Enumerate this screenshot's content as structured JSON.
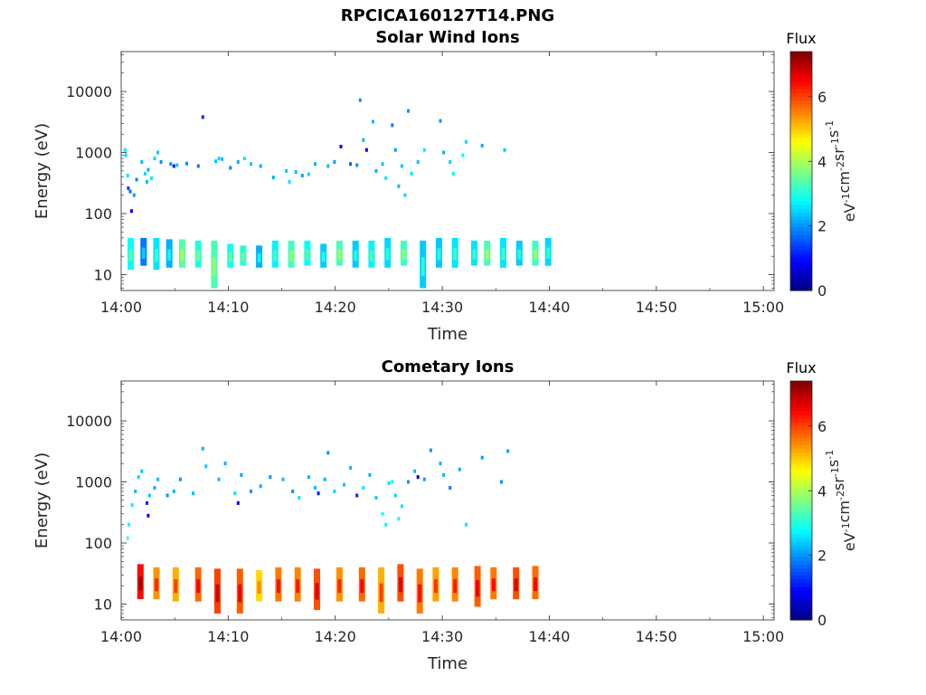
{
  "figure": {
    "title": "RPCICA160127T14.PNG"
  },
  "colorbar": {
    "label": "Flux",
    "unit_parts": [
      "eV",
      "-1",
      "cm",
      "-2",
      "sr",
      "-1",
      "s",
      "-1"
    ],
    "ticks": [
      "0",
      "2",
      "4",
      "6"
    ],
    "range": [
      0,
      7.4
    ],
    "colormap": "jet"
  },
  "chart_data": [
    {
      "type": "heatmap",
      "title": "Solar Wind Ions",
      "xlabel": "Time",
      "ylabel": "Energy (eV)",
      "y_scale": "log",
      "ylim": [
        5.5,
        45000
      ],
      "xlim": [
        "14:00",
        "15:01"
      ],
      "x_ticks": [
        "14:00",
        "14:10",
        "14:20",
        "14:30",
        "14:40",
        "14:50",
        "15:00"
      ],
      "y_ticks": [
        "10",
        "100",
        "1000",
        "10000"
      ],
      "low_band_bursts": [
        {
          "t": 14.01,
          "e": [
            12,
            40
          ],
          "flux": 2.8
        },
        {
          "t": 14.03,
          "e": [
            14,
            40
          ],
          "flux": 1.8
        },
        {
          "t": 14.05,
          "e": [
            12,
            40
          ],
          "flux": 2.6
        },
        {
          "t": 14.07,
          "e": [
            13,
            38
          ],
          "flux": 2.2
        },
        {
          "t": 14.09,
          "e": [
            13,
            38
          ],
          "flux": 3.4
        },
        {
          "t": 14.115,
          "e": [
            13,
            36
          ],
          "flux": 3.0
        },
        {
          "t": 14.14,
          "e": [
            6,
            36
          ],
          "flux": 3.3
        },
        {
          "t": 14.165,
          "e": [
            13,
            32
          ],
          "flux": 2.9
        },
        {
          "t": 14.185,
          "e": [
            14,
            30
          ],
          "flux": 3.0
        },
        {
          "t": 14.21,
          "e": [
            13,
            30
          ],
          "flux": 2.2
        },
        {
          "t": 14.235,
          "e": [
            13,
            36
          ],
          "flux": 2.7
        },
        {
          "t": 14.26,
          "e": [
            13,
            36
          ],
          "flux": 3.2
        },
        {
          "t": 14.285,
          "e": [
            14,
            36
          ],
          "flux": 2.8
        },
        {
          "t": 14.31,
          "e": [
            13,
            32
          ],
          "flux": 2.4
        },
        {
          "t": 14.335,
          "e": [
            14,
            36
          ],
          "flux": 3.3
        },
        {
          "t": 14.36,
          "e": [
            13,
            36
          ],
          "flux": 2.4
        },
        {
          "t": 14.385,
          "e": [
            13,
            36
          ],
          "flux": 2.7
        },
        {
          "t": 14.41,
          "e": [
            13,
            40
          ],
          "flux": 2.5
        },
        {
          "t": 14.435,
          "e": [
            14,
            36
          ],
          "flux": 3.2
        },
        {
          "t": 14.465,
          "e": [
            6,
            36
          ],
          "flux": 2.4
        },
        {
          "t": 14.49,
          "e": [
            13,
            40
          ],
          "flux": 2.4
        },
        {
          "t": 14.515,
          "e": [
            13,
            40
          ],
          "flux": 2.6
        },
        {
          "t": 14.545,
          "e": [
            14,
            36
          ],
          "flux": 2.6
        },
        {
          "t": 14.565,
          "e": [
            14,
            36
          ],
          "flux": 3.3
        },
        {
          "t": 14.59,
          "e": [
            13,
            40
          ],
          "flux": 2.6
        },
        {
          "t": 14.615,
          "e": [
            14,
            36
          ],
          "flux": 2.4
        },
        {
          "t": 14.64,
          "e": [
            14,
            36
          ],
          "flux": 3.2
        },
        {
          "t": 14.66,
          "e": [
            14,
            40
          ],
          "flux": 2.5
        }
      ],
      "high_band_points": [
        {
          "t": 14.004,
          "e": 1100,
          "flux": 2.6
        },
        {
          "t": 14.005,
          "e": 900,
          "flux": 2.5
        },
        {
          "t": 14.008,
          "e": 420,
          "flux": 2.6
        },
        {
          "t": 14.009,
          "e": 260,
          "flux": 1.4
        },
        {
          "t": 14.012,
          "e": 230,
          "flux": 1.7
        },
        {
          "t": 14.014,
          "e": 110,
          "flux": 0.9
        },
        {
          "t": 14.018,
          "e": 200,
          "flux": 2.1
        },
        {
          "t": 14.022,
          "e": 360,
          "flux": 1.9
        },
        {
          "t": 14.03,
          "e": 700,
          "flux": 2.3
        },
        {
          "t": 14.035,
          "e": 450,
          "flux": 2.5
        },
        {
          "t": 14.038,
          "e": 330,
          "flux": 2.3
        },
        {
          "t": 14.04,
          "e": 520,
          "flux": 2.2
        },
        {
          "t": 14.045,
          "e": 380,
          "flux": 2.6
        },
        {
          "t": 14.05,
          "e": 800,
          "flux": 2.5
        },
        {
          "t": 14.055,
          "e": 1000,
          "flux": 2.4
        },
        {
          "t": 14.06,
          "e": 700,
          "flux": 2.0
        },
        {
          "t": 14.075,
          "e": 650,
          "flux": 2.0
        },
        {
          "t": 14.08,
          "e": 600,
          "flux": 1.1
        },
        {
          "t": 14.085,
          "e": 620,
          "flux": 2.3
        },
        {
          "t": 14.1,
          "e": 660,
          "flux": 2.0
        },
        {
          "t": 14.118,
          "e": 600,
          "flux": 1.8
        },
        {
          "t": 14.125,
          "e": 3800,
          "flux": 1.2
        },
        {
          "t": 14.145,
          "e": 720,
          "flux": 2.4
        },
        {
          "t": 14.15,
          "e": 800,
          "flux": 2.5
        },
        {
          "t": 14.155,
          "e": 780,
          "flux": 2.3
        },
        {
          "t": 14.168,
          "e": 560,
          "flux": 1.9
        },
        {
          "t": 14.18,
          "e": 700,
          "flux": 2.2
        },
        {
          "t": 14.19,
          "e": 800,
          "flux": 2.6
        },
        {
          "t": 14.2,
          "e": 650,
          "flux": 2.4
        },
        {
          "t": 14.215,
          "e": 600,
          "flux": 2.2
        },
        {
          "t": 14.235,
          "e": 390,
          "flux": 2.2
        },
        {
          "t": 14.255,
          "e": 500,
          "flux": 2.4
        },
        {
          "t": 14.26,
          "e": 330,
          "flux": 2.6
        },
        {
          "t": 14.27,
          "e": 480,
          "flux": 2.3
        },
        {
          "t": 14.28,
          "e": 420,
          "flux": 2.1
        },
        {
          "t": 14.29,
          "e": 440,
          "flux": 2.5
        },
        {
          "t": 14.3,
          "e": 650,
          "flux": 2.2
        },
        {
          "t": 14.32,
          "e": 600,
          "flux": 2.3
        },
        {
          "t": 14.33,
          "e": 700,
          "flux": 2.1
        },
        {
          "t": 14.34,
          "e": 1250,
          "flux": 1.0
        },
        {
          "t": 14.355,
          "e": 650,
          "flux": 1.6
        },
        {
          "t": 14.365,
          "e": 620,
          "flux": 2.0
        },
        {
          "t": 14.37,
          "e": 7200,
          "flux": 2.0
        },
        {
          "t": 14.375,
          "e": 1600,
          "flux": 2.2
        },
        {
          "t": 14.38,
          "e": 1100,
          "flux": 0.9
        },
        {
          "t": 14.39,
          "e": 3200,
          "flux": 2.3
        },
        {
          "t": 14.395,
          "e": 500,
          "flux": 2.2
        },
        {
          "t": 14.405,
          "e": 650,
          "flux": 2.4
        },
        {
          "t": 14.41,
          "e": 380,
          "flux": 2.6
        },
        {
          "t": 14.42,
          "e": 2800,
          "flux": 1.8
        },
        {
          "t": 14.425,
          "e": 1100,
          "flux": 2.1
        },
        {
          "t": 14.43,
          "e": 280,
          "flux": 2.3
        },
        {
          "t": 14.435,
          "e": 600,
          "flux": 2.4
        },
        {
          "t": 14.44,
          "e": 200,
          "flux": 2.5
        },
        {
          "t": 14.445,
          "e": 4800,
          "flux": 2.0
        },
        {
          "t": 14.45,
          "e": 450,
          "flux": 2.6
        },
        {
          "t": 14.46,
          "e": 700,
          "flux": 2.4
        },
        {
          "t": 14.47,
          "e": 1100,
          "flux": 2.6
        },
        {
          "t": 14.495,
          "e": 3300,
          "flux": 2.0
        },
        {
          "t": 14.5,
          "e": 1000,
          "flux": 2.2
        },
        {
          "t": 14.51,
          "e": 700,
          "flux": 2.5
        },
        {
          "t": 14.515,
          "e": 450,
          "flux": 2.7
        },
        {
          "t": 14.53,
          "e": 900,
          "flux": 2.7
        },
        {
          "t": 14.535,
          "e": 1500,
          "flux": 2.5
        },
        {
          "t": 14.56,
          "e": 1300,
          "flux": 2.2
        },
        {
          "t": 14.595,
          "e": 1100,
          "flux": 2.4
        }
      ]
    },
    {
      "type": "heatmap",
      "title": "Cometary Ions",
      "xlabel": "Time",
      "ylabel": "Energy (eV)",
      "y_scale": "log",
      "ylim": [
        5.5,
        45000
      ],
      "xlim": [
        "14:00",
        "15:01"
      ],
      "x_ticks": [
        "14:00",
        "14:10",
        "14:20",
        "14:30",
        "14:40",
        "14:50",
        "15:00"
      ],
      "y_ticks": [
        "10",
        "100",
        "1000",
        "10000"
      ],
      "low_band_bursts": [
        {
          "t": 14.025,
          "e": [
            12,
            45
          ],
          "flux": 6.4
        },
        {
          "t": 14.05,
          "e": [
            12,
            40
          ],
          "flux": 5.4
        },
        {
          "t": 14.08,
          "e": [
            11,
            40
          ],
          "flux": 5.2
        },
        {
          "t": 14.115,
          "e": [
            11,
            40
          ],
          "flux": 5.7
        },
        {
          "t": 14.145,
          "e": [
            7,
            38
          ],
          "flux": 6.0
        },
        {
          "t": 14.18,
          "e": [
            7,
            38
          ],
          "flux": 5.8
        },
        {
          "t": 14.21,
          "e": [
            11,
            36
          ],
          "flux": 4.9
        },
        {
          "t": 14.24,
          "e": [
            11,
            40
          ],
          "flux": 5.6
        },
        {
          "t": 14.27,
          "e": [
            11,
            40
          ],
          "flux": 5.5
        },
        {
          "t": 14.3,
          "e": [
            8,
            38
          ],
          "flux": 5.9
        },
        {
          "t": 14.335,
          "e": [
            11,
            40
          ],
          "flux": 5.4
        },
        {
          "t": 14.37,
          "e": [
            11,
            40
          ],
          "flux": 5.7
        },
        {
          "t": 14.4,
          "e": [
            7,
            40
          ],
          "flux": 5.2
        },
        {
          "t": 14.43,
          "e": [
            11,
            45
          ],
          "flux": 5.9
        },
        {
          "t": 14.46,
          "e": [
            7,
            38
          ],
          "flux": 5.6
        },
        {
          "t": 14.485,
          "e": [
            11,
            40
          ],
          "flux": 5.3
        },
        {
          "t": 14.515,
          "e": [
            11,
            40
          ],
          "flux": 5.5
        },
        {
          "t": 14.55,
          "e": [
            9,
            42
          ],
          "flux": 5.8
        },
        {
          "t": 14.575,
          "e": [
            12,
            40
          ],
          "flux": 5.6
        },
        {
          "t": 14.61,
          "e": [
            12,
            40
          ],
          "flux": 5.9
        },
        {
          "t": 14.64,
          "e": [
            12,
            42
          ],
          "flux": 5.7
        }
      ],
      "high_band_points": [
        {
          "t": 14.008,
          "e": 120,
          "flux": 3.2
        },
        {
          "t": 14.01,
          "e": 200,
          "flux": 2.8
        },
        {
          "t": 14.015,
          "e": 420,
          "flux": 2.7
        },
        {
          "t": 14.02,
          "e": 700,
          "flux": 2.3
        },
        {
          "t": 14.025,
          "e": 1200,
          "flux": 2.5
        },
        {
          "t": 14.03,
          "e": 1500,
          "flux": 2.4
        },
        {
          "t": 14.038,
          "e": 450,
          "flux": 1.2
        },
        {
          "t": 14.04,
          "e": 280,
          "flux": 0.8
        },
        {
          "t": 14.042,
          "e": 600,
          "flux": 2.4
        },
        {
          "t": 14.05,
          "e": 800,
          "flux": 2.2
        },
        {
          "t": 14.055,
          "e": 1100,
          "flux": 2.3
        },
        {
          "t": 14.07,
          "e": 600,
          "flux": 2.0
        },
        {
          "t": 14.08,
          "e": 700,
          "flux": 2.2
        },
        {
          "t": 14.09,
          "e": 1100,
          "flux": 2.0
        },
        {
          "t": 14.11,
          "e": 650,
          "flux": 2.3
        },
        {
          "t": 14.125,
          "e": 3500,
          "flux": 2.2
        },
        {
          "t": 14.13,
          "e": 1800,
          "flux": 2.4
        },
        {
          "t": 14.15,
          "e": 1100,
          "flux": 2.3
        },
        {
          "t": 14.16,
          "e": 2000,
          "flux": 2.2
        },
        {
          "t": 14.175,
          "e": 650,
          "flux": 2.6
        },
        {
          "t": 14.18,
          "e": 450,
          "flux": 0.9
        },
        {
          "t": 14.185,
          "e": 1300,
          "flux": 2.1
        },
        {
          "t": 14.2,
          "e": 700,
          "flux": 2.0
        },
        {
          "t": 14.215,
          "e": 850,
          "flux": 2.2
        },
        {
          "t": 14.23,
          "e": 1200,
          "flux": 2.0
        },
        {
          "t": 14.25,
          "e": 1100,
          "flux": 2.3
        },
        {
          "t": 14.265,
          "e": 700,
          "flux": 2.0
        },
        {
          "t": 14.275,
          "e": 550,
          "flux": 2.6
        },
        {
          "t": 14.29,
          "e": 1200,
          "flux": 2.2
        },
        {
          "t": 14.3,
          "e": 800,
          "flux": 2.3
        },
        {
          "t": 14.305,
          "e": 650,
          "flux": 1.1
        },
        {
          "t": 14.315,
          "e": 1100,
          "flux": 2.2
        },
        {
          "t": 14.32,
          "e": 3000,
          "flux": 2.0
        },
        {
          "t": 14.33,
          "e": 700,
          "flux": 2.5
        },
        {
          "t": 14.345,
          "e": 900,
          "flux": 2.4
        },
        {
          "t": 14.355,
          "e": 1700,
          "flux": 2.3
        },
        {
          "t": 14.365,
          "e": 600,
          "flux": 1.2
        },
        {
          "t": 14.375,
          "e": 800,
          "flux": 2.6
        },
        {
          "t": 14.385,
          "e": 1300,
          "flux": 2.2
        },
        {
          "t": 14.395,
          "e": 550,
          "flux": 2.4
        },
        {
          "t": 14.405,
          "e": 300,
          "flux": 2.9
        },
        {
          "t": 14.41,
          "e": 200,
          "flux": 2.7
        },
        {
          "t": 14.415,
          "e": 950,
          "flux": 2.6
        },
        {
          "t": 14.42,
          "e": 1000,
          "flux": 2.8
        },
        {
          "t": 14.425,
          "e": 600,
          "flux": 2.5
        },
        {
          "t": 14.43,
          "e": 250,
          "flux": 2.8
        },
        {
          "t": 14.435,
          "e": 400,
          "flux": 2.6
        },
        {
          "t": 14.445,
          "e": 1000,
          "flux": 2.0
        },
        {
          "t": 14.455,
          "e": 1500,
          "flux": 2.3
        },
        {
          "t": 14.46,
          "e": 1200,
          "flux": 0.5
        },
        {
          "t": 14.47,
          "e": 1100,
          "flux": 2.1
        },
        {
          "t": 14.48,
          "e": 3300,
          "flux": 2.0
        },
        {
          "t": 14.495,
          "e": 2000,
          "flux": 2.2
        },
        {
          "t": 14.5,
          "e": 1300,
          "flux": 2.3
        },
        {
          "t": 14.51,
          "e": 800,
          "flux": 1.8
        },
        {
          "t": 14.525,
          "e": 1600,
          "flux": 2.2
        },
        {
          "t": 14.535,
          "e": 200,
          "flux": 2.6
        },
        {
          "t": 14.56,
          "e": 2500,
          "flux": 2.1
        },
        {
          "t": 14.59,
          "e": 1000,
          "flux": 2.0
        },
        {
          "t": 14.6,
          "e": 3200,
          "flux": 2.1
        }
      ]
    }
  ]
}
